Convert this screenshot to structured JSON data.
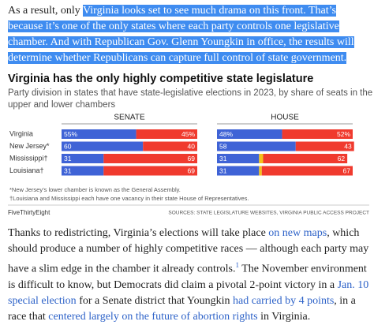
{
  "paragraph_1": [
    "As a result, only ",
    "Virginia looks set to see much drama on this front. That’s because it’s one of the only states where each party controls one legislative chamber. And with Republican Gov. Glenn Youngkin in office, the results will determine whether Republicans can capture full control of state government."
  ],
  "chart_data": {
    "type": "bar",
    "stacked": true,
    "orientation": "horizontal",
    "title": "Virginia has the only highly competitive state legislature",
    "subtitle": [
      "Party division in states that have state-legislative elections in 2023, by share of seats in the",
      "upper and lower chambers"
    ],
    "categories": [
      "Virginia",
      "New Jersey*",
      "Mississippi†",
      "Louisiana†"
    ],
    "xlim": [
      0,
      100
    ],
    "panels": [
      {
        "title": "SENATE",
        "series": [
          {
            "color": "#3f63d6",
            "values": [
              55,
              60,
              31,
              31
            ],
            "value_labels": [
              "55%",
              "60",
              "31",
              "31"
            ]
          },
          {
            "color": "#f03a2e",
            "values": [
              45,
              40,
              69,
              69
            ],
            "value_labels": [
              "45%",
              "40",
              "69",
              "69"
            ]
          }
        ]
      },
      {
        "title": "HOUSE",
        "series": [
          {
            "color": "#3f63d6",
            "values": [
              48,
              58,
              31,
              31
            ],
            "value_labels": [
              "48%",
              "58",
              "31",
              "31"
            ]
          },
          {
            "color": "#f5c01a",
            "values": [
              null,
              null,
              3,
              2
            ]
          },
          {
            "color": "#f03a2e",
            "values": [
              52,
              43,
              62,
              67
            ],
            "value_labels": [
              "52%",
              "43",
              "62",
              "67"
            ]
          }
        ]
      }
    ],
    "footnotes": [
      "*New Jersey’s lower chamber is known as the General Assembly.",
      "†Louisiana and Mississippi each have one vacancy in their state House of Representatives."
    ],
    "brand": "FiveThirtyEight",
    "source": "SOURCES: STATE LEGISLATURE WEBSITES, VIRGINIA PUBLIC ACCESS PROJECT"
  },
  "paragraph_2": [
    "Thanks to redistricting, Virginia’s elections will take place ",
    "on new maps",
    ", which should produce a number of highly competitive races — although each party may have a slim edge in the chamber it already controls.",
    "1",
    " The November environment is difficult to know, but Democrats did claim a pivotal 2-point victory in a ",
    "Jan. 10 special election",
    " for a Senate district that Youngkin ",
    "had carried by 4 points",
    ", in a race that ",
    "centered largely on the future of abortion rights",
    " in Virginia."
  ]
}
